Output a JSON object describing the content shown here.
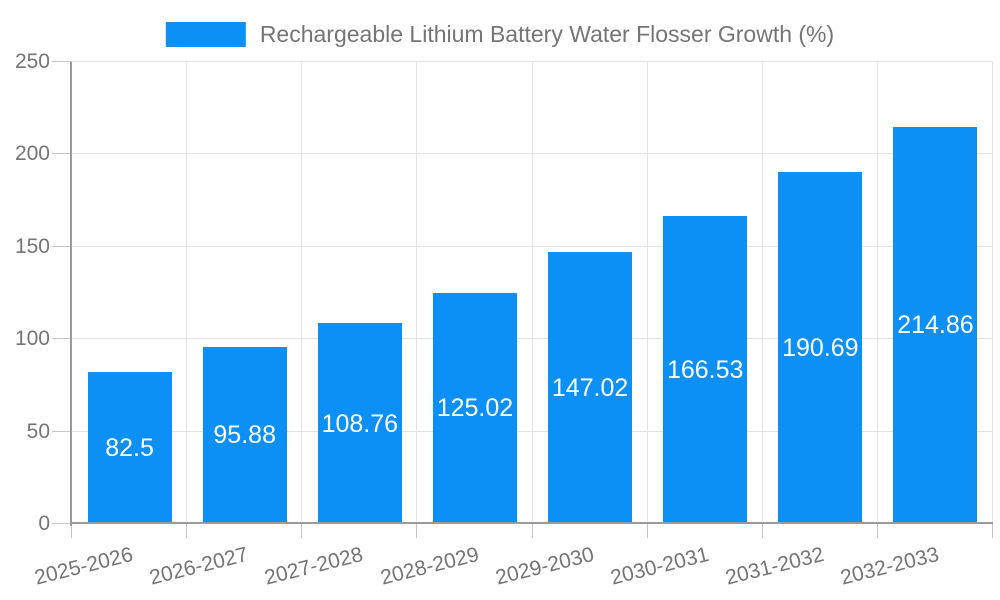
{
  "chart_data": {
    "type": "bar",
    "title": "Rechargeable Lithium Battery Water Flosser Growth (%)",
    "series_label": "Rechargeable Lithium Battery Water Flosser Growth (%)",
    "categories": [
      "2025-2026",
      "2026-2027",
      "2027-2028",
      "2028-2029",
      "2029-2030",
      "2030-2031",
      "2031-2032",
      "2032-2033"
    ],
    "values": [
      82.5,
      95.88,
      108.76,
      125.02,
      147.02,
      166.53,
      190.69,
      214.86
    ],
    "value_labels": [
      "82.5",
      "95.88",
      "108.76",
      "125.02",
      "147.02",
      "166.53",
      "190.69",
      "214.86"
    ],
    "xlabel": "",
    "ylabel": "",
    "ylim": [
      0,
      250
    ],
    "yticks": [
      0,
      50,
      100,
      150,
      200,
      250
    ],
    "grid": true,
    "legend_position": "top",
    "x_label_rotation_deg": -14,
    "colors": {
      "bar": "#0d90f5",
      "grid": "#e3e3e3",
      "axis": "#9a9a9a",
      "tick": "#c6c6c6",
      "text": "#757575",
      "value_text": "#ffffff",
      "background": "#ffffff"
    }
  }
}
